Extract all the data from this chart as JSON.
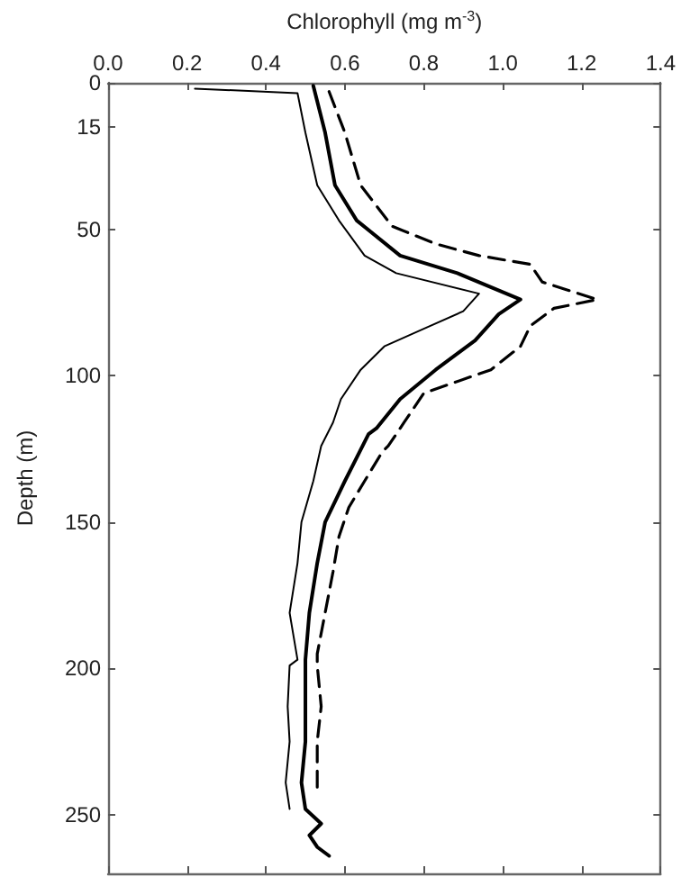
{
  "chart_data": {
    "type": "line",
    "xlabel": "Chlorophyll (mg m$^{-3}$)",
    "ylabel": "Depth (m)",
    "xlim": [
      0,
      1.4
    ],
    "xticks": [
      {
        "value": 0,
        "label": "0.0"
      },
      {
        "value": 0.2,
        "label": "0.2"
      },
      {
        "value": 0.4,
        "label": "0.4"
      },
      {
        "value": 0.6,
        "label": "0.6"
      },
      {
        "value": 0.8,
        "label": "0.8"
      },
      {
        "value": 1,
        "label": "1.0"
      },
      {
        "value": 1.2,
        "label": "1.2"
      },
      {
        "value": 1.4,
        "label": "1.4"
      }
    ],
    "ylim": [
      270,
      0
    ],
    "yticks": [
      0,
      15,
      50,
      100,
      150,
      200,
      250
    ],
    "grid": false,
    "marker": "none",
    "series": [
      {
        "color": "#000000",
        "line_style": "solid",
        "x": [
          0.22,
          0.48,
          0.5,
          0.53,
          0.585,
          0.65,
          0.73,
          0.94,
          0.9,
          0.8,
          0.7,
          0.64,
          0.59,
          0.57,
          0.54,
          0.52,
          0.49,
          0.48,
          0.46,
          0.48,
          0.46,
          0.455,
          0.46,
          0.45,
          0.46
        ],
        "values": [
          2,
          3.5,
          17,
          35,
          47,
          59,
          65,
          72,
          78,
          84,
          90,
          98,
          108,
          116,
          124,
          136,
          150,
          164,
          181,
          197,
          199,
          213,
          225,
          239,
          248
        ]
      },
      {
        "color": "#000000",
        "line_style": "solid",
        "x": [
          0.52,
          0.55,
          0.575,
          0.63,
          0.74,
          0.885,
          1.045,
          0.99,
          0.93,
          0.83,
          0.74,
          0.68,
          0.66,
          0.6,
          0.55,
          0.53,
          0.51,
          0.5,
          0.5,
          0.5,
          0.5,
          0.49,
          0.5,
          0.54,
          0.51,
          0.53,
          0.56
        ],
        "values": [
          1,
          17,
          35,
          47,
          59,
          65,
          74,
          79,
          88,
          98,
          108,
          118,
          120,
          136,
          150,
          164,
          181,
          197,
          199,
          213,
          225,
          239,
          248,
          253,
          257,
          261,
          264
        ]
      },
      {
        "color": "#000000",
        "line_style": "dashed",
        "x": [
          0.56,
          0.6,
          0.64,
          0.72,
          0.83,
          0.94,
          1.07,
          1.1,
          1.24,
          1.13,
          1.07,
          1.045,
          0.97,
          0.8,
          0.75,
          0.71,
          0.695,
          0.65,
          0.61,
          0.585,
          0.57,
          0.55,
          0.53,
          0.53,
          0.54,
          0.53,
          0.53
        ],
        "values": [
          3,
          17,
          35,
          49,
          55,
          59,
          62,
          68,
          74,
          77,
          83,
          90,
          98,
          106,
          116,
          124,
          126,
          136,
          145,
          155,
          167,
          181,
          195,
          199,
          213,
          225,
          241
        ]
      }
    ]
  }
}
